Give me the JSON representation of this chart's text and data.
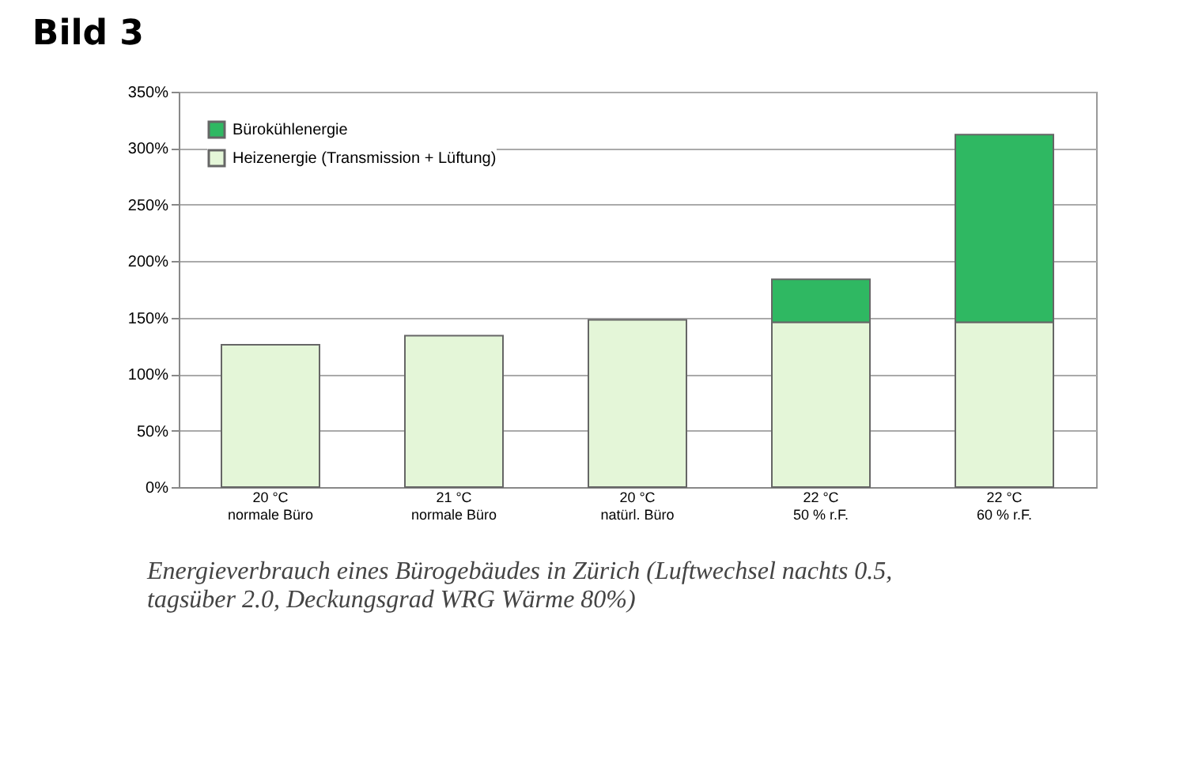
{
  "chart_data": {
    "type": "bar",
    "title": "Bild 3",
    "stacked": true,
    "categories": [
      "20 °C\nnormale Büro",
      "21 °C\nnormale Büro",
      "20 °C\nnatürl. Büro",
      "22 °C\n50 % r.F.",
      "22 °C\n60 % r.F."
    ],
    "series": [
      {
        "name": "Heizenergie (Transmission + Lüftung)",
        "color": "#e4f6d8",
        "values": [
          126,
          134,
          148,
          146,
          146
        ]
      },
      {
        "name": "Bürokühlenergie",
        "color": "#2fb862",
        "values": [
          null,
          null,
          null,
          38,
          166
        ]
      }
    ],
    "ylim": [
      0,
      350
    ],
    "yticks": [
      {
        "value": 0,
        "label": "0%"
      },
      {
        "value": 50,
        "label": "50%"
      },
      {
        "value": 100,
        "label": "100%"
      },
      {
        "value": 150,
        "label": "150%"
      },
      {
        "value": 200,
        "label": "200%"
      },
      {
        "value": 250,
        "label": "250%"
      },
      {
        "value": 300,
        "label": "300%"
      },
      {
        "value": 350,
        "label": "350%"
      }
    ],
    "grid": "y",
    "legend": "top left",
    "annotations": [
      "Energieverbrauch eines Bürogebäudes in Zürich (Luftwechsel nachts 0.5, tagsüber 2.0, Deckungsgrad WRG Wärme 80%)"
    ]
  }
}
